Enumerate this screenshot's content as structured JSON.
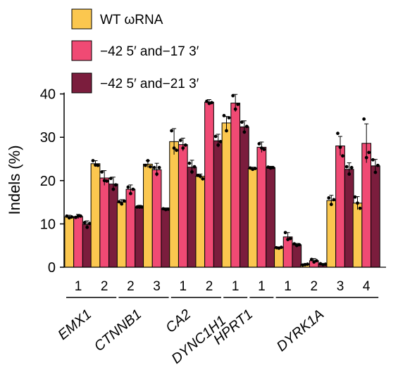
{
  "chart_data": {
    "type": "bar",
    "ylabel": "Indels (%)",
    "ylim": [
      0,
      40
    ],
    "yticks": [
      0,
      10,
      20,
      30,
      40
    ],
    "legend_position": "top",
    "series": [
      {
        "name": "WT ωRNA",
        "color": "#FBC74F",
        "values": [
          11.6,
          23.9,
          15.0,
          23.8,
          29.0,
          21.0,
          33.3,
          22.8,
          4.5,
          0.6,
          15.4,
          14.8
        ],
        "errors": [
          0.4,
          0.7,
          0.6,
          0.8,
          3.0,
          0.5,
          1.5,
          0.3,
          0.2,
          0.2,
          1.2,
          1.5
        ]
      },
      {
        "name": "−42 5′ and−17 3′",
        "color": "#F04A74",
        "values": [
          11.7,
          20.6,
          18.0,
          22.5,
          28.3,
          38.1,
          37.9,
          27.7,
          7.0,
          1.5,
          28.0,
          28.6
        ],
        "errors": [
          0.5,
          1.7,
          1.0,
          1.5,
          1.5,
          0.6,
          2.0,
          1.2,
          1.0,
          0.5,
          2.2,
          4.5
        ]
      },
      {
        "name": "−42 5′ and−21 3′",
        "color": "#7B1D3D",
        "values": [
          9.9,
          19.2,
          13.9,
          13.4,
          23.1,
          29.2,
          32.4,
          23.0,
          5.2,
          0.7,
          22.6,
          23.4
        ],
        "errors": [
          0.8,
          1.6,
          0.4,
          0.3,
          1.6,
          1.5,
          1.4,
          0.3,
          0.3,
          0.1,
          1.5,
          1.5
        ]
      }
    ],
    "points": [
      [
        [
          11.8,
          11.4,
          11.6
        ],
        [
          24.6,
          23.6,
          23.5
        ],
        [
          15.1,
          14.6,
          15.3
        ],
        [
          23.5,
          24.6,
          23.2
        ],
        [
          31.5,
          27.5,
          27.0
        ],
        [
          21.2,
          21.0,
          20.4
        ],
        [
          35.0,
          31.5,
          34.5
        ],
        [
          22.9,
          22.6,
          22.8
        ],
        [
          4.5,
          4.4,
          4.6
        ],
        [
          0.5,
          0.6,
          0.7
        ],
        [
          16.0,
          14.5,
          15.6
        ],
        [
          16.2,
          14.8,
          13.6
        ]
      ],
      [
        [
          11.5,
          11.8,
          11.8
        ],
        [
          22.0,
          20.0,
          19.9
        ],
        [
          18.5,
          17.0,
          18.0
        ],
        [
          23.0,
          21.5,
          23.0
        ],
        [
          29.3,
          27.5,
          28.2
        ],
        [
          38.3,
          37.8,
          38.0
        ],
        [
          39.6,
          36.5,
          37.6
        ],
        [
          28.5,
          27.5,
          27.2
        ],
        [
          8.0,
          6.4,
          6.6
        ],
        [
          1.8,
          1.2,
          1.5
        ],
        [
          30.9,
          27.7,
          25.7
        ],
        [
          34.2,
          25.3,
          26.5
        ]
      ],
      [
        [
          10.3,
          9.2,
          10.1
        ],
        [
          20.5,
          18.0,
          19.0
        ],
        [
          13.9,
          13.9,
          13.9
        ],
        [
          13.5,
          13.3,
          13.4
        ],
        [
          24.0,
          22.0,
          23.2
        ],
        [
          30.2,
          28.2,
          29.0
        ],
        [
          33.5,
          31.2,
          32.5
        ],
        [
          23.1,
          22.9,
          23.0
        ],
        [
          5.4,
          5.0,
          5.2
        ],
        [
          0.8,
          0.6,
          0.7
        ],
        [
          23.2,
          21.5,
          23.0
        ],
        [
          24.8,
          21.9,
          23.5
        ]
      ]
    ],
    "groups": [
      {
        "gene": "EMX1",
        "sites": [
          "1",
          "2"
        ]
      },
      {
        "gene": "CTNNB1",
        "sites": [
          "2",
          "3"
        ]
      },
      {
        "gene": "CA2",
        "sites": [
          "1",
          "2"
        ]
      },
      {
        "gene": "DYNC1H1",
        "sites": [
          "1"
        ]
      },
      {
        "gene": "HPRT1",
        "sites": [
          "1"
        ]
      },
      {
        "gene": "DYRK1A",
        "sites": [
          "1",
          "2",
          "3",
          "4"
        ]
      }
    ]
  }
}
